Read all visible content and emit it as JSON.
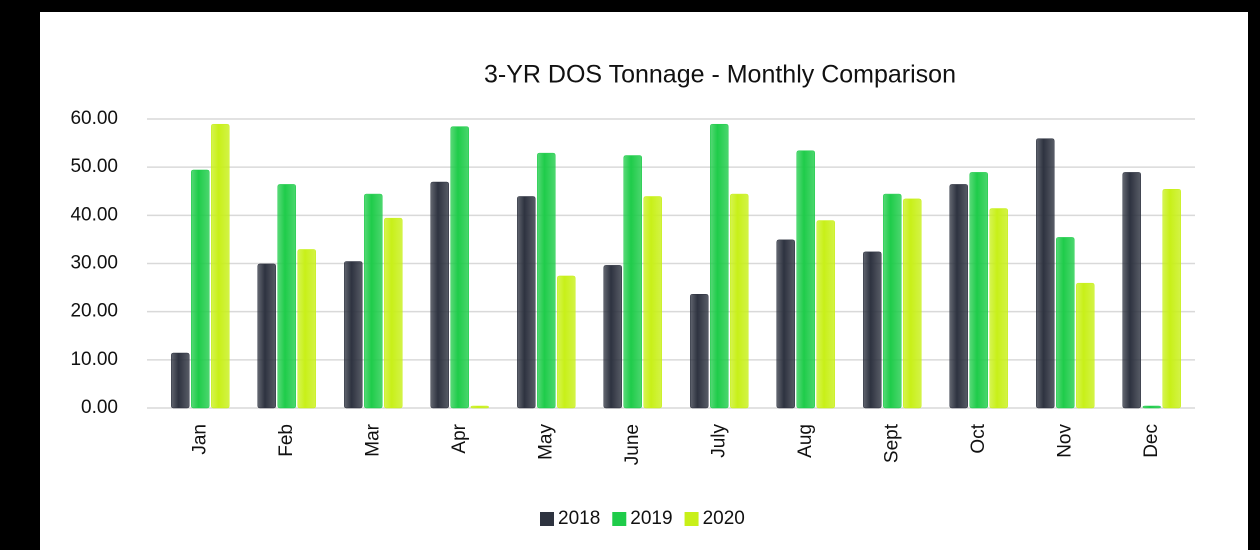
{
  "chart_data": {
    "type": "bar",
    "title": "3-YR DOS Tonnage - Monthly Comparison",
    "categories": [
      "Jan",
      "Feb",
      "Mar",
      "Apr",
      "May",
      "June",
      "July",
      "Aug",
      "Sept",
      "Oct",
      "Nov",
      "Dec"
    ],
    "series": [
      {
        "name": "2018",
        "color": "#2e3340",
        "values": [
          11,
          29.5,
          30,
          46.5,
          43.5,
          29.2,
          23.2,
          34.5,
          32,
          46,
          55.5,
          48.5
        ]
      },
      {
        "name": "2019",
        "color": "#1fcc4a",
        "values": [
          49,
          46,
          44,
          58,
          52.5,
          52,
          58.5,
          53,
          44,
          48.5,
          35,
          0
        ]
      },
      {
        "name": "2020",
        "color": "#c8f018",
        "values": [
          58.5,
          32.5,
          39,
          0,
          27,
          43.5,
          44,
          38.5,
          43,
          41,
          25.5,
          45
        ]
      }
    ],
    "ylim": [
      0,
      60
    ],
    "yticks": [
      {
        "value": 0,
        "label": "0.00"
      },
      {
        "value": 10,
        "label": "10.00"
      },
      {
        "value": 20,
        "label": "20.00"
      },
      {
        "value": 30,
        "label": "30.00"
      },
      {
        "value": 40,
        "label": "40.00"
      },
      {
        "value": 50,
        "label": "50.00"
      },
      {
        "value": 60,
        "label": "60.00"
      }
    ],
    "grid": true,
    "legend": "bottom"
  }
}
